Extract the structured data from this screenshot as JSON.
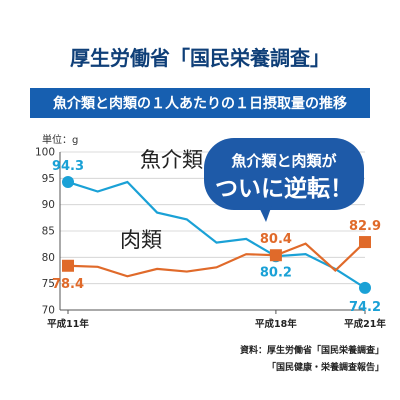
{
  "title": "厚生労働省「国民栄養調査」",
  "subtitle": "魚介類と肉類の１人あたりの１日摂取量の推移",
  "callout": {
    "line1": "魚介類と肉類が",
    "line2": "ついに逆転！"
  },
  "source_lines": [
    "資料：厚生労働省「国民栄養調査」",
    "「国民健康・栄養調査報告」"
  ],
  "colors": {
    "fish": "#1aa1d6",
    "meat": "#e06a2a",
    "banner": "#175fb0",
    "callout": "#1e5aa8"
  },
  "chart_data": {
    "type": "line",
    "ylabel": "単位：g",
    "ylim": [
      70,
      100
    ],
    "yticks": [
      70,
      75,
      80,
      85,
      90,
      95,
      100
    ],
    "x": [
      11,
      12,
      13,
      14,
      15,
      16,
      17,
      18,
      19,
      20,
      21
    ],
    "x_tick_labels": [
      {
        "x": 11,
        "label": "平成11年"
      },
      {
        "x": 18,
        "label": "平成18年"
      },
      {
        "x": 21,
        "label": "平成21年"
      }
    ],
    "series": [
      {
        "name": "魚介類",
        "color": "#1aa1d6",
        "values": [
          94.3,
          92.5,
          94.3,
          88.5,
          87.2,
          82.8,
          83.5,
          80.2,
          80.6,
          77.8,
          74.2
        ],
        "labeled": [
          {
            "index": 0,
            "label": "94.3"
          },
          {
            "index": 7,
            "label": "80.2"
          },
          {
            "index": 10,
            "label": "74.2"
          }
        ]
      },
      {
        "name": "肉類",
        "color": "#e06a2a",
        "values": [
          78.4,
          78.2,
          76.4,
          77.8,
          77.3,
          78.1,
          80.6,
          80.4,
          82.6,
          77.5,
          82.9
        ],
        "labeled": [
          {
            "index": 0,
            "label": "78.4"
          },
          {
            "index": 7,
            "label": "80.4"
          },
          {
            "index": 10,
            "label": "82.9"
          }
        ]
      }
    ]
  }
}
